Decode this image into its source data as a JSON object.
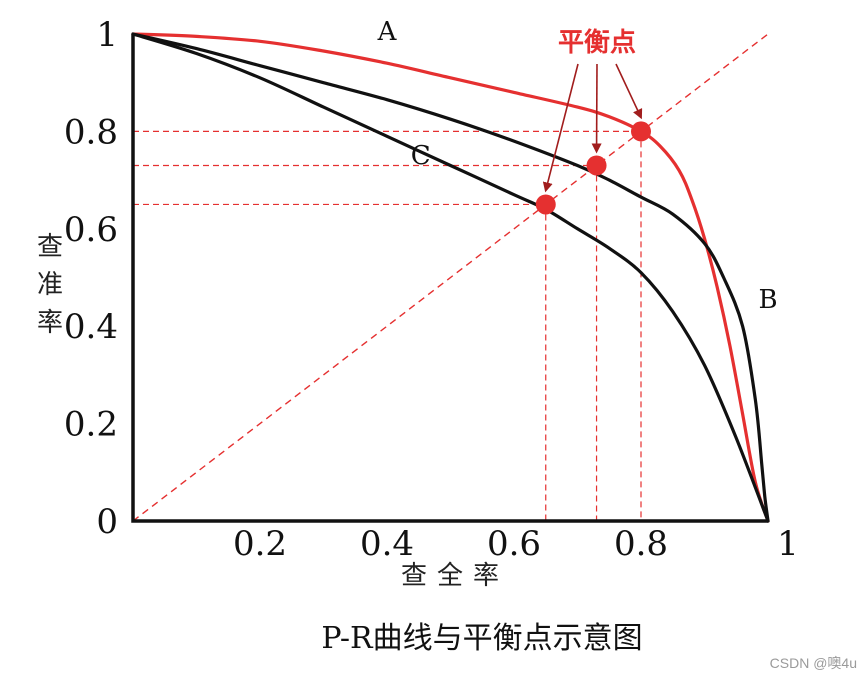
{
  "chart_data": {
    "type": "line",
    "title": "P-R曲线与平衡点示意图",
    "xlabel": "查全率",
    "ylabel_chars": [
      "查",
      "准",
      "率"
    ],
    "xlim": [
      0,
      1
    ],
    "ylim": [
      0,
      1
    ],
    "x_ticks": [
      {
        "value": 0.2,
        "label": "0.2"
      },
      {
        "value": 0.4,
        "label": "0.4"
      },
      {
        "value": 0.6,
        "label": "0.6"
      },
      {
        "value": 0.8,
        "label": "0.8"
      },
      {
        "value": 1,
        "label": "1"
      }
    ],
    "y_ticks": [
      {
        "value": 0,
        "label": "0"
      },
      {
        "value": 0.2,
        "label": "0.2"
      },
      {
        "value": 0.4,
        "label": "0.4"
      },
      {
        "value": 0.6,
        "label": "0.6"
      },
      {
        "value": 0.8,
        "label": "0.8"
      },
      {
        "value": 1,
        "label": "1"
      }
    ],
    "series": [
      {
        "name": "A",
        "color": "#e53030",
        "label_at": [
          0.4,
          1.0
        ],
        "x": [
          0.0,
          0.1,
          0.2,
          0.3,
          0.4,
          0.5,
          0.6,
          0.7,
          0.75,
          0.8,
          0.83,
          0.86,
          0.88,
          0.9,
          0.92,
          0.94,
          0.96,
          0.98,
          1.0
        ],
        "y": [
          1.0,
          0.995,
          0.985,
          0.965,
          0.94,
          0.91,
          0.88,
          0.85,
          0.83,
          0.8,
          0.77,
          0.72,
          0.66,
          0.58,
          0.48,
          0.36,
          0.22,
          0.08,
          0.0
        ]
      },
      {
        "name": "B",
        "color": "#111111",
        "label_at": [
          1.0,
          0.45
        ],
        "x": [
          0.0,
          0.1,
          0.2,
          0.3,
          0.4,
          0.5,
          0.6,
          0.7,
          0.75,
          0.8,
          0.85,
          0.9,
          0.93,
          0.96,
          0.98,
          0.99,
          0.995,
          1.0
        ],
        "y": [
          1.0,
          0.97,
          0.935,
          0.9,
          0.865,
          0.825,
          0.78,
          0.73,
          0.7,
          0.665,
          0.63,
          0.57,
          0.5,
          0.4,
          0.25,
          0.12,
          0.05,
          0.0
        ]
      },
      {
        "name": "C",
        "color": "#111111",
        "label_at": [
          0.45,
          0.75
        ],
        "x": [
          0.0,
          0.1,
          0.2,
          0.3,
          0.4,
          0.5,
          0.6,
          0.65,
          0.7,
          0.75,
          0.8,
          0.85,
          0.9,
          0.95,
          1.0
        ],
        "y": [
          1.0,
          0.96,
          0.91,
          0.85,
          0.79,
          0.73,
          0.67,
          0.64,
          0.6,
          0.56,
          0.51,
          0.43,
          0.32,
          0.17,
          0.0
        ]
      }
    ],
    "diagonal": {
      "from": [
        0,
        0
      ],
      "to": [
        1,
        1
      ],
      "color": "#e53030",
      "style": "dashed"
    },
    "break_even_points": [
      {
        "series": "C",
        "x": 0.65,
        "y": 0.65
      },
      {
        "series": "B",
        "x": 0.73,
        "y": 0.73
      },
      {
        "series": "A",
        "x": 0.8,
        "y": 0.8
      }
    ],
    "annotation": {
      "text": "平衡点",
      "color": "#e53030"
    },
    "grid": false
  },
  "colors": {
    "red": "#e53030",
    "dark_red": "#a11d1d",
    "black": "#111111"
  },
  "watermark": "CSDN @噢4u"
}
